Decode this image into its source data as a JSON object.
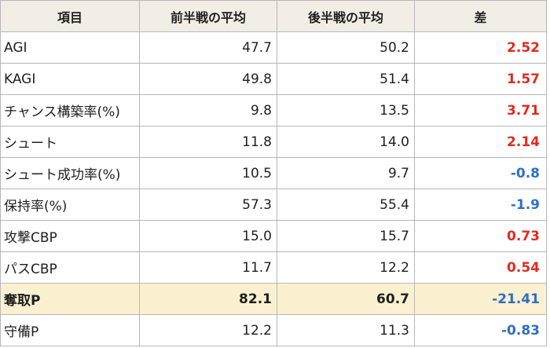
{
  "table": {
    "headers": [
      "項目",
      "前半戦の平均",
      "後半戦の平均",
      "差"
    ],
    "rows": [
      {
        "item": "AGI",
        "first": "47.7",
        "second": "50.2",
        "diff": "2.52",
        "sign": "pos",
        "highlight": false
      },
      {
        "item": "KAGI",
        "first": "49.8",
        "second": "51.4",
        "diff": "1.57",
        "sign": "pos",
        "highlight": false
      },
      {
        "item": "チャンス構築率(%)",
        "first": "9.8",
        "second": "13.5",
        "diff": "3.71",
        "sign": "pos",
        "highlight": false
      },
      {
        "item": "シュート",
        "first": "11.8",
        "second": "14.0",
        "diff": "2.14",
        "sign": "pos",
        "highlight": false
      },
      {
        "item": "シュート成功率(%)",
        "first": "10.5",
        "second": "9.7",
        "diff": "-0.8",
        "sign": "neg",
        "highlight": false
      },
      {
        "item": "保持率(%)",
        "first": "57.3",
        "second": "55.4",
        "diff": "-1.9",
        "sign": "neg",
        "highlight": false
      },
      {
        "item": "攻撃CBP",
        "first": "15.0",
        "second": "15.7",
        "diff": "0.73",
        "sign": "pos",
        "highlight": false
      },
      {
        "item": "パスCBP",
        "first": "11.7",
        "second": "12.2",
        "diff": "0.54",
        "sign": "pos",
        "highlight": false
      },
      {
        "item": "奪取P",
        "first": "82.1",
        "second": "60.7",
        "diff": "-21.41",
        "sign": "neg",
        "highlight": true
      },
      {
        "item": "守備P",
        "first": "12.2",
        "second": "11.3",
        "diff": "-0.83",
        "sign": "neg",
        "highlight": false
      }
    ]
  },
  "colors": {
    "positive": "#e02b20",
    "negative": "#2e6fc7",
    "header_bg": "#f3eee5",
    "highlight_bg": "#fbf0cf"
  }
}
